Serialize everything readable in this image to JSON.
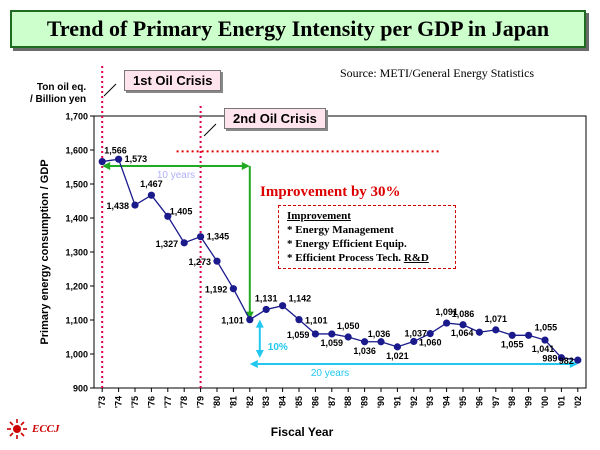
{
  "header": {
    "title": "Trend of Primary Energy Intensity per GDP in Japan",
    "source": "Source: METI/General Energy Statistics"
  },
  "axis_units": {
    "line1": "Ton oil eq.",
    "line2": "/ Billion yen"
  },
  "annotations": {
    "crisis1": "1st Oil Crisis",
    "crisis2": "2nd Oil Crisis",
    "ten_years": "10 years",
    "twenty_years": "20 years",
    "improvement_30": "Improvement by 30%",
    "ten_percent": "10%",
    "improvement_box": {
      "heading": "Improvement",
      "items": [
        "* Energy Management",
        "* Energy Efficient Equip.",
        "* Efficient Process Tech. "
      ],
      "item3_suffix": "R&D"
    }
  },
  "logo": {
    "text": "ECCJ"
  },
  "colors": {
    "series": "#1a1a8c",
    "crisis_line": "#e0004a",
    "green": "#22aa22",
    "cyan": "#22c8f0",
    "red_text": "#dd0000"
  },
  "chart_data": {
    "type": "line",
    "title": "Trend of Primary Energy Intensity per GDP in Japan",
    "xlabel": "Fiscal Year",
    "ylabel": "Primary energy consumption / GDP",
    "ylim": [
      900,
      1700
    ],
    "yticks": [
      900,
      1000,
      1100,
      1200,
      1300,
      1400,
      1500,
      1600,
      1700
    ],
    "ytick_labels": [
      "900",
      "1,000",
      "1,100",
      "1,200",
      "1,300",
      "1,400",
      "1,500",
      "1,600",
      "1,700"
    ],
    "categories": [
      "'73",
      "'74",
      "'75",
      "'76",
      "'77",
      "'78",
      "'79",
      "'80",
      "'81",
      "'82",
      "'83",
      "'84",
      "'85",
      "'86",
      "'87",
      "'88",
      "'89",
      "'90",
      "'91",
      "'92",
      "'93",
      "'94",
      "'95",
      "'96",
      "'97",
      "'98",
      "'99",
      "'00",
      "'01",
      "'02"
    ],
    "series": [
      {
        "name": "Primary energy intensity",
        "values": [
          1566,
          1573,
          1438,
          1467,
          1405,
          1327,
          1345,
          1273,
          1192,
          1101,
          1131,
          1142,
          1101,
          1059,
          1059,
          1050,
          1036,
          1036,
          1021,
          1037,
          1060,
          1091,
          1086,
          1064,
          1071,
          1055,
          1055,
          1041,
          989,
          982
        ],
        "labels": [
          "1,566",
          "1,573",
          "1,438",
          "1,467",
          "1,405",
          "1,327",
          "1,345",
          "1,273",
          "1,192",
          "1,101",
          "1,131",
          "1,142",
          "1,101",
          "1,059",
          "1,059",
          "1,050",
          "1,036",
          "1,036",
          "1,021",
          "1,037",
          "1,060",
          "1,091",
          "1,086",
          "1,064",
          "1,071",
          "1,055",
          "1,055",
          "1,041",
          "989",
          "982"
        ]
      }
    ],
    "reference_line_value": 1590,
    "vertical_markers": [
      "'73",
      "'79"
    ]
  }
}
